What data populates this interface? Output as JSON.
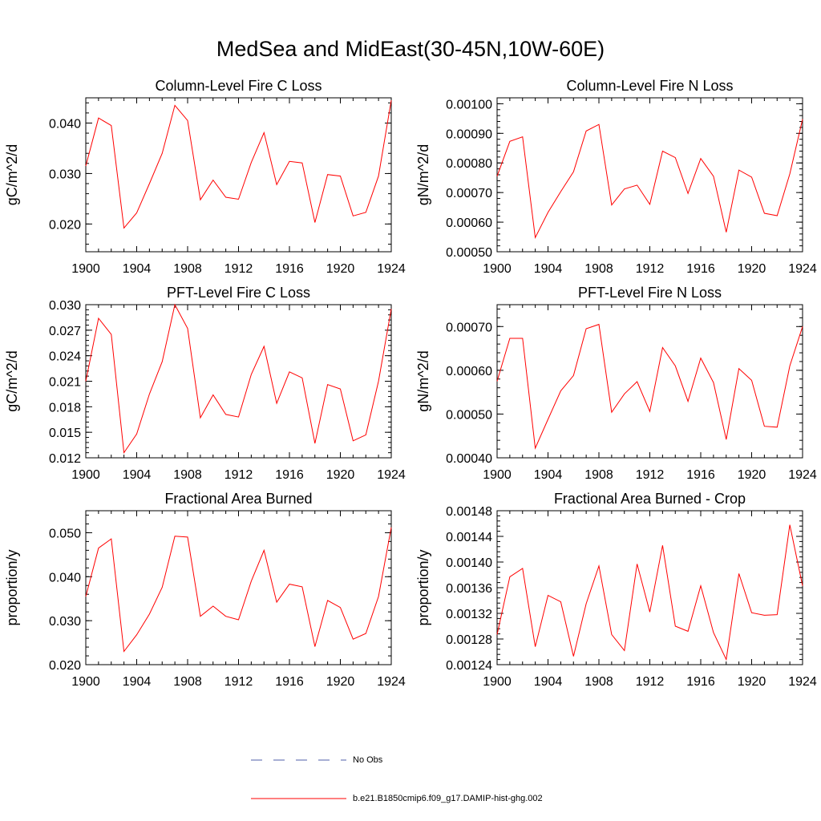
{
  "title": "MedSea and MidEast(30-45N,10W-60E)",
  "colors": {
    "series": "#ff0000",
    "obs": "#4f5fa8",
    "axis": "#000000"
  },
  "legend": {
    "obs_label": "No Obs",
    "model_label": "b.e21.B1850cmip6.f09_g17.DAMIP-hist-ghg.002"
  },
  "chart_data": [
    {
      "type": "line",
      "title": "Column-Level Fire C Loss",
      "ylabel": "gC/m^2/d",
      "xlim": [
        1900,
        1924
      ],
      "ylim": [
        0.0145,
        0.045
      ],
      "xticks": [
        1900,
        1904,
        1908,
        1912,
        1916,
        1920,
        1924
      ],
      "yticks": [
        0.02,
        0.03,
        0.04
      ],
      "ytick_labels": [
        "0.020",
        "0.030",
        "0.040"
      ],
      "x": [
        1900,
        1901,
        1902,
        1903,
        1904,
        1905,
        1906,
        1907,
        1908,
        1909,
        1910,
        1911,
        1912,
        1913,
        1914,
        1915,
        1916,
        1917,
        1918,
        1919,
        1920,
        1921,
        1922,
        1923,
        1924
      ],
      "series": [
        {
          "values": [
            0.0315,
            0.041,
            0.0395,
            0.0192,
            0.0222,
            0.028,
            0.034,
            0.0435,
            0.0405,
            0.0248,
            0.0287,
            0.0253,
            0.0249,
            0.0322,
            0.0381,
            0.0278,
            0.0324,
            0.0321,
            0.0203,
            0.0298,
            0.0295,
            0.0216,
            0.0223,
            0.0295,
            0.0445
          ]
        }
      ]
    },
    {
      "type": "line",
      "title": "Column-Level Fire N Loss",
      "ylabel": "gN/m^2/d",
      "xlim": [
        1900,
        1924
      ],
      "ylim": [
        0.0005,
        0.00102
      ],
      "xticks": [
        1900,
        1904,
        1908,
        1912,
        1916,
        1920,
        1924
      ],
      "yticks": [
        0.0005,
        0.0006,
        0.0007,
        0.0008,
        0.0009,
        0.001
      ],
      "ytick_labels": [
        "0.00050",
        "0.00060",
        "0.00070",
        "0.00080",
        "0.00090",
        "0.00100"
      ],
      "x": [
        1900,
        1901,
        1902,
        1903,
        1904,
        1905,
        1906,
        1907,
        1908,
        1909,
        1910,
        1911,
        1912,
        1913,
        1914,
        1915,
        1916,
        1917,
        1918,
        1919,
        1920,
        1921,
        1922,
        1923,
        1924
      ],
      "series": [
        {
          "values": [
            0.000755,
            0.000873,
            0.000888,
            0.000548,
            0.000633,
            0.000703,
            0.00077,
            0.000908,
            0.00093,
            0.000658,
            0.000712,
            0.000725,
            0.00066,
            0.00084,
            0.000818,
            0.000697,
            0.000815,
            0.000755,
            0.000566,
            0.000776,
            0.000752,
            0.00063,
            0.000622,
            0.000763,
            0.000948
          ]
        }
      ]
    },
    {
      "type": "line",
      "title": "PFT-Level Fire C Loss",
      "ylabel": "gC/m^2/d",
      "xlim": [
        1900,
        1924
      ],
      "ylim": [
        0.012,
        0.03
      ],
      "xticks": [
        1900,
        1904,
        1908,
        1912,
        1916,
        1920,
        1924
      ],
      "yticks": [
        0.012,
        0.015,
        0.018,
        0.021,
        0.024,
        0.027,
        0.03
      ],
      "ytick_labels": [
        "0.012",
        "0.015",
        "0.018",
        "0.021",
        "0.024",
        "0.027",
        "0.030"
      ],
      "x": [
        1900,
        1901,
        1902,
        1903,
        1904,
        1905,
        1906,
        1907,
        1908,
        1909,
        1910,
        1911,
        1912,
        1913,
        1914,
        1915,
        1916,
        1917,
        1918,
        1919,
        1920,
        1921,
        1922,
        1923,
        1924
      ],
      "series": [
        {
          "values": [
            0.021,
            0.0284,
            0.0265,
            0.0126,
            0.0148,
            0.0195,
            0.0233,
            0.03,
            0.0272,
            0.0167,
            0.0194,
            0.0171,
            0.0168,
            0.0218,
            0.0251,
            0.0184,
            0.0221,
            0.0214,
            0.0137,
            0.0206,
            0.0201,
            0.014,
            0.0147,
            0.021,
            0.0295
          ]
        }
      ]
    },
    {
      "type": "line",
      "title": "PFT-Level Fire N Loss",
      "ylabel": "gN/m^2/d",
      "xlim": [
        1900,
        1924
      ],
      "ylim": [
        0.0004,
        0.00075
      ],
      "xticks": [
        1900,
        1904,
        1908,
        1912,
        1916,
        1920,
        1924
      ],
      "yticks": [
        0.0004,
        0.0005,
        0.0006,
        0.0007
      ],
      "ytick_labels": [
        "0.00040",
        "0.00050",
        "0.00060",
        "0.00070"
      ],
      "x": [
        1900,
        1901,
        1902,
        1903,
        1904,
        1905,
        1906,
        1907,
        1908,
        1909,
        1910,
        1911,
        1912,
        1913,
        1914,
        1915,
        1916,
        1917,
        1918,
        1919,
        1920,
        1921,
        1922,
        1923,
        1924
      ],
      "series": [
        {
          "values": [
            0.000575,
            0.000673,
            0.000673,
            0.000422,
            0.000488,
            0.000553,
            0.000588,
            0.000695,
            0.000705,
            0.000504,
            0.000546,
            0.000574,
            0.000506,
            0.000652,
            0.00061,
            0.000529,
            0.000628,
            0.000572,
            0.000442,
            0.000604,
            0.000577,
            0.000472,
            0.00047,
            0.00061,
            0.0007
          ]
        }
      ]
    },
    {
      "type": "line",
      "title": "Fractional Area Burned",
      "ylabel": "proportion/y",
      "xlim": [
        1900,
        1924
      ],
      "ylim": [
        0.02,
        0.055
      ],
      "xticks": [
        1900,
        1904,
        1908,
        1912,
        1916,
        1920,
        1924
      ],
      "yticks": [
        0.02,
        0.03,
        0.04,
        0.05
      ],
      "ytick_labels": [
        "0.020",
        "0.030",
        "0.040",
        "0.050"
      ],
      "x": [
        1900,
        1901,
        1902,
        1903,
        1904,
        1905,
        1906,
        1907,
        1908,
        1909,
        1910,
        1911,
        1912,
        1913,
        1914,
        1915,
        1916,
        1917,
        1918,
        1919,
        1920,
        1921,
        1922,
        1923,
        1924
      ],
      "series": [
        {
          "values": [
            0.0355,
            0.0465,
            0.0486,
            0.023,
            0.0268,
            0.0315,
            0.0376,
            0.0492,
            0.049,
            0.031,
            0.0333,
            0.031,
            0.0302,
            0.039,
            0.046,
            0.0342,
            0.0383,
            0.0377,
            0.0241,
            0.0346,
            0.033,
            0.0258,
            0.0271,
            0.0355,
            0.0512
          ]
        }
      ]
    },
    {
      "type": "line",
      "title": "Fractional Area Burned - Crop",
      "ylabel": "proportion/y",
      "xlim": [
        1900,
        1924
      ],
      "ylim": [
        0.00124,
        0.00148
      ],
      "xticks": [
        1900,
        1904,
        1908,
        1912,
        1916,
        1920,
        1924
      ],
      "yticks": [
        0.00124,
        0.00128,
        0.00132,
        0.00136,
        0.0014,
        0.00144,
        0.00148
      ],
      "ytick_labels": [
        "0.00124",
        "0.00128",
        "0.00132",
        "0.00136",
        "0.00140",
        "0.00144",
        "0.00148"
      ],
      "x": [
        1900,
        1901,
        1902,
        1903,
        1904,
        1905,
        1906,
        1907,
        1908,
        1909,
        1910,
        1911,
        1912,
        1913,
        1914,
        1915,
        1916,
        1917,
        1918,
        1919,
        1920,
        1921,
        1922,
        1923,
        1924
      ],
      "series": [
        {
          "values": [
            0.001287,
            0.001377,
            0.00139,
            0.001268,
            0.001348,
            0.001338,
            0.001253,
            0.001335,
            0.001394,
            0.001287,
            0.001262,
            0.001397,
            0.001322,
            0.001426,
            0.0013,
            0.001292,
            0.001363,
            0.00129,
            0.001248,
            0.001382,
            0.001321,
            0.001317,
            0.001318,
            0.001458,
            0.001363
          ]
        }
      ]
    }
  ]
}
